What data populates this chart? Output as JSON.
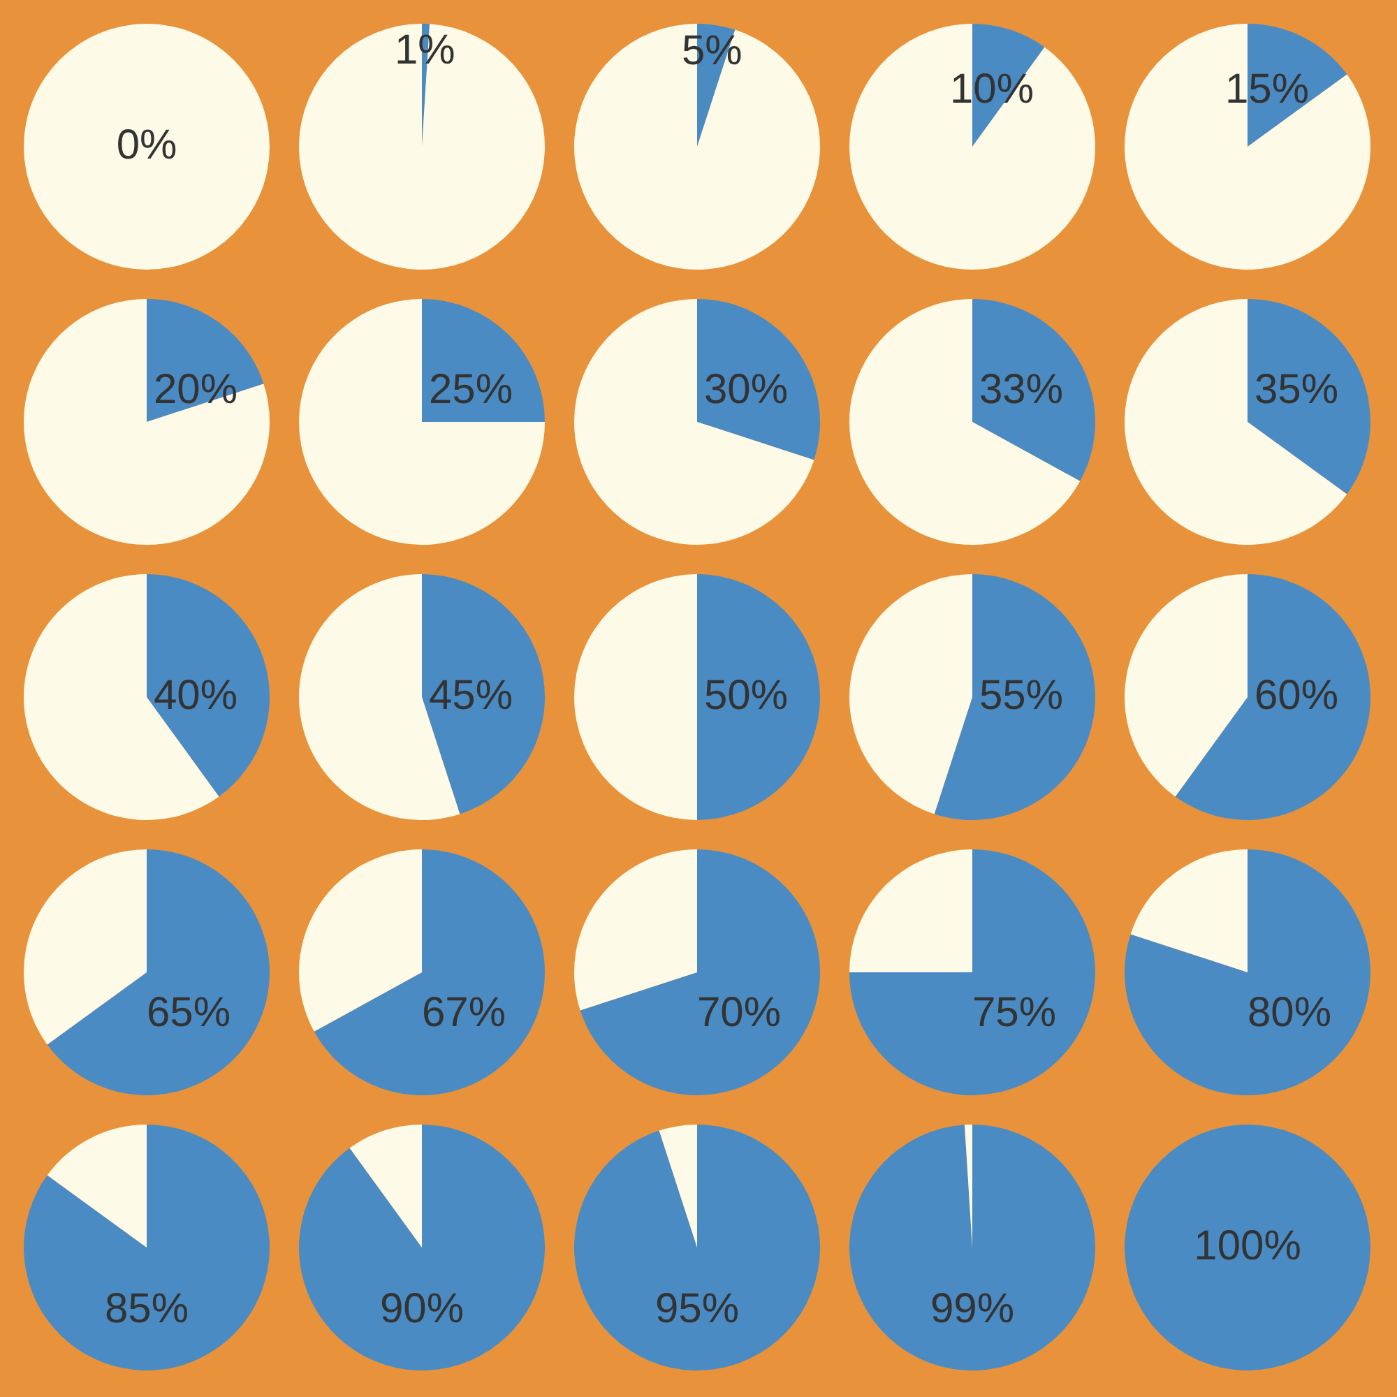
{
  "chart_data": [
    {
      "type": "pie",
      "categories": [
        null,
        null
      ],
      "values": [
        0,
        100
      ],
      "colors": [
        "#4a8bc4",
        "#fdfbe8"
      ],
      "value_labels": [
        "0%",
        null
      ]
    },
    {
      "type": "pie",
      "categories": [
        null,
        null
      ],
      "values": [
        1,
        99
      ],
      "colors": [
        "#4a8bc4",
        "#fdfbe8"
      ],
      "value_labels": [
        "1%",
        null
      ]
    },
    {
      "type": "pie",
      "categories": [
        null,
        null
      ],
      "values": [
        5,
        95
      ],
      "colors": [
        "#4a8bc4",
        "#fdfbe8"
      ],
      "value_labels": [
        "5%",
        null
      ]
    },
    {
      "type": "pie",
      "categories": [
        null,
        null
      ],
      "values": [
        10,
        90
      ],
      "colors": [
        "#4a8bc4",
        "#fdfbe8"
      ],
      "value_labels": [
        "10%",
        null
      ]
    },
    {
      "type": "pie",
      "categories": [
        null,
        null
      ],
      "values": [
        15,
        85
      ],
      "colors": [
        "#4a8bc4",
        "#fdfbe8"
      ],
      "value_labels": [
        "15%",
        null
      ]
    },
    {
      "type": "pie",
      "categories": [
        null,
        null
      ],
      "values": [
        20,
        80
      ],
      "colors": [
        "#4a8bc4",
        "#fdfbe8"
      ],
      "value_labels": [
        "20%",
        null
      ]
    },
    {
      "type": "pie",
      "categories": [
        null,
        null
      ],
      "values": [
        25,
        75
      ],
      "colors": [
        "#4a8bc4",
        "#fdfbe8"
      ],
      "value_labels": [
        "25%",
        null
      ]
    },
    {
      "type": "pie",
      "categories": [
        null,
        null
      ],
      "values": [
        30,
        70
      ],
      "colors": [
        "#4a8bc4",
        "#fdfbe8"
      ],
      "value_labels": [
        "30%",
        null
      ]
    },
    {
      "type": "pie",
      "categories": [
        null,
        null
      ],
      "values": [
        33,
        67
      ],
      "colors": [
        "#4a8bc4",
        "#fdfbe8"
      ],
      "value_labels": [
        "33%",
        null
      ]
    },
    {
      "type": "pie",
      "categories": [
        null,
        null
      ],
      "values": [
        35,
        65
      ],
      "colors": [
        "#4a8bc4",
        "#fdfbe8"
      ],
      "value_labels": [
        "35%",
        null
      ]
    },
    {
      "type": "pie",
      "categories": [
        null,
        null
      ],
      "values": [
        40,
        60
      ],
      "colors": [
        "#4a8bc4",
        "#fdfbe8"
      ],
      "value_labels": [
        "40%",
        null
      ]
    },
    {
      "type": "pie",
      "categories": [
        null,
        null
      ],
      "values": [
        45,
        55
      ],
      "colors": [
        "#4a8bc4",
        "#fdfbe8"
      ],
      "value_labels": [
        "45%",
        null
      ]
    },
    {
      "type": "pie",
      "categories": [
        null,
        null
      ],
      "values": [
        50,
        50
      ],
      "colors": [
        "#4a8bc4",
        "#fdfbe8"
      ],
      "value_labels": [
        "50%",
        null
      ]
    },
    {
      "type": "pie",
      "categories": [
        null,
        null
      ],
      "values": [
        55,
        45
      ],
      "colors": [
        "#4a8bc4",
        "#fdfbe8"
      ],
      "value_labels": [
        "55%",
        null
      ]
    },
    {
      "type": "pie",
      "categories": [
        null,
        null
      ],
      "values": [
        60,
        40
      ],
      "colors": [
        "#4a8bc4",
        "#fdfbe8"
      ],
      "value_labels": [
        "60%",
        null
      ]
    },
    {
      "type": "pie",
      "categories": [
        null,
        null
      ],
      "values": [
        65,
        35
      ],
      "colors": [
        "#4a8bc4",
        "#fdfbe8"
      ],
      "value_labels": [
        "65%",
        null
      ]
    },
    {
      "type": "pie",
      "categories": [
        null,
        null
      ],
      "values": [
        67,
        33
      ],
      "colors": [
        "#4a8bc4",
        "#fdfbe8"
      ],
      "value_labels": [
        "67%",
        null
      ]
    },
    {
      "type": "pie",
      "categories": [
        null,
        null
      ],
      "values": [
        70,
        30
      ],
      "colors": [
        "#4a8bc4",
        "#fdfbe8"
      ],
      "value_labels": [
        "70%",
        null
      ]
    },
    {
      "type": "pie",
      "categories": [
        null,
        null
      ],
      "values": [
        75,
        25
      ],
      "colors": [
        "#4a8bc4",
        "#fdfbe8"
      ],
      "value_labels": [
        "75%",
        null
      ]
    },
    {
      "type": "pie",
      "categories": [
        null,
        null
      ],
      "values": [
        80,
        20
      ],
      "colors": [
        "#4a8bc4",
        "#fdfbe8"
      ],
      "value_labels": [
        "80%",
        null
      ]
    },
    {
      "type": "pie",
      "categories": [
        null,
        null
      ],
      "values": [
        85,
        15
      ],
      "colors": [
        "#4a8bc4",
        "#fdfbe8"
      ],
      "value_labels": [
        "85%",
        null
      ]
    },
    {
      "type": "pie",
      "categories": [
        null,
        null
      ],
      "values": [
        90,
        10
      ],
      "colors": [
        "#4a8bc4",
        "#fdfbe8"
      ],
      "value_labels": [
        "90%",
        null
      ]
    },
    {
      "type": "pie",
      "categories": [
        null,
        null
      ],
      "values": [
        95,
        5
      ],
      "colors": [
        "#4a8bc4",
        "#fdfbe8"
      ],
      "value_labels": [
        "95%",
        null
      ]
    },
    {
      "type": "pie",
      "categories": [
        null,
        null
      ],
      "values": [
        99,
        1
      ],
      "colors": [
        "#4a8bc4",
        "#fdfbe8"
      ],
      "value_labels": [
        "99%",
        null
      ]
    },
    {
      "type": "pie",
      "categories": [
        null,
        null
      ],
      "values": [
        100,
        0
      ],
      "colors": [
        "#4a8bc4",
        "#fdfbe8"
      ],
      "value_labels": [
        "100%",
        null
      ]
    }
  ]
}
